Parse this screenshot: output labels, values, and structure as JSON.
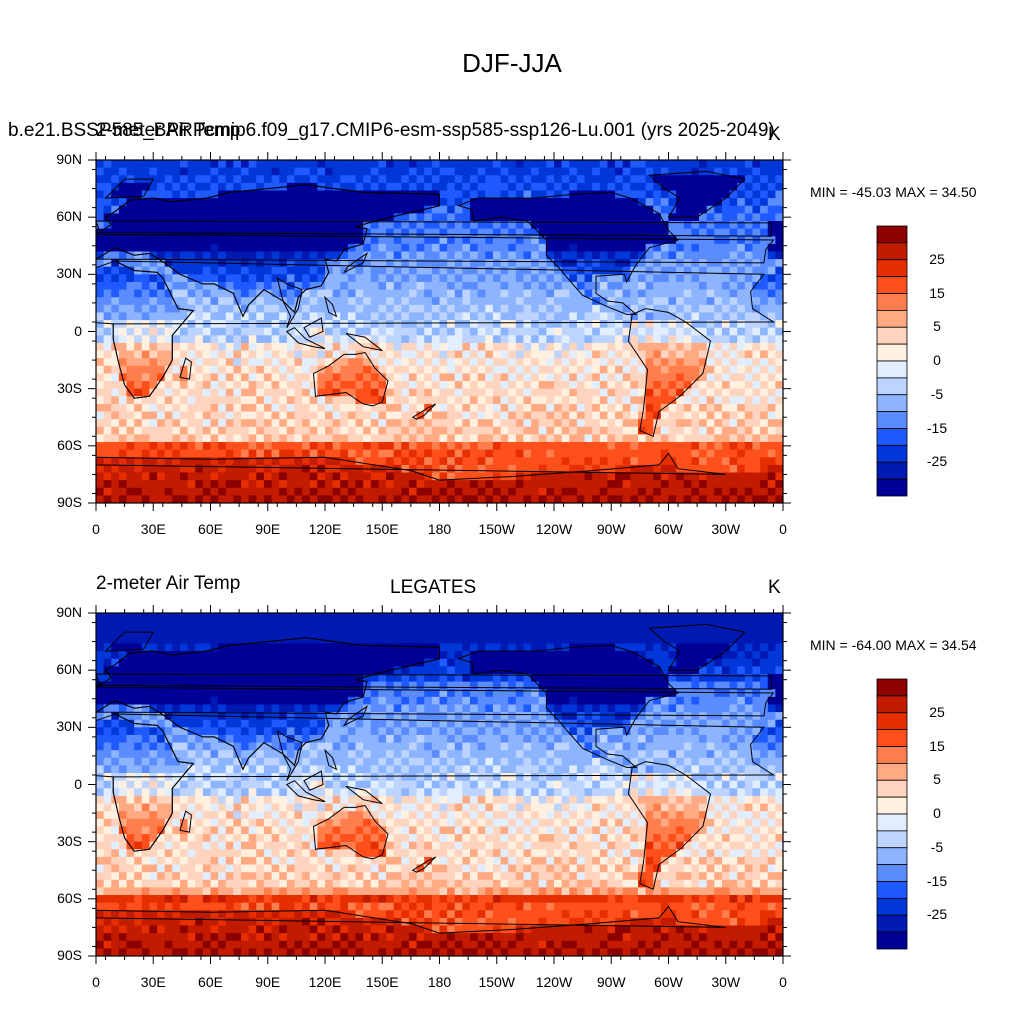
{
  "figure": {
    "title": "DJF-JJA"
  },
  "panels": [
    {
      "left_title": "2-meter Air Temp",
      "center_title": "b.e21.BSSP585_BPRPcmip6.f09_g17.CMIP6-esm-ssp585-ssp126-Lu.001 (yrs 2025-2049)",
      "right_title": "K",
      "stats": "MIN = -45.03 MAX =  34.50"
    },
    {
      "left_title": "2-meter Air Temp",
      "center_title": "LEGATES",
      "right_title": "K",
      "stats": "MIN = -64.00 MAX =  34.54"
    }
  ],
  "axes": {
    "lat_labels": [
      "90N",
      "60N",
      "30N",
      "0",
      "30S",
      "60S",
      "90S"
    ],
    "lon_labels": [
      "0",
      "30E",
      "60E",
      "90E",
      "120E",
      "150E",
      "180",
      "150W",
      "120W",
      "90W",
      "60W",
      "30W",
      "0"
    ]
  },
  "colorbar": {
    "labels": [
      "25",
      "15",
      "5",
      "0",
      "-5",
      "-15",
      "-25"
    ],
    "levels": [
      -30,
      -25,
      -20,
      -15,
      -10,
      -5,
      -2,
      0,
      2,
      5,
      10,
      15,
      20,
      25,
      30
    ],
    "colors": [
      "#000096",
      "#0019b3",
      "#0037d9",
      "#1e5aff",
      "#5a8cff",
      "#8cb4ff",
      "#bcd4ff",
      "#e0eeff",
      "#fff0e0",
      "#ffd4bf",
      "#ffaa82",
      "#ff7e4d",
      "#ff4f1a",
      "#e62e00",
      "#c21b00",
      "#8c0000"
    ]
  },
  "chart_data": {
    "type": "heatmap",
    "title": "DJF-JJA",
    "xlabel": "",
    "ylabel": "",
    "x_range": [
      "0",
      "0"
    ],
    "y_range": [
      "90S",
      "90N"
    ],
    "units": "K",
    "panels": [
      {
        "name": "b.e21.BSSP585_BPRPcmip6.f09_g17.CMIP6-esm-ssp585-ssp126-Lu.001 (yrs 2025-2049)",
        "min": -45.03,
        "max": 34.5
      },
      {
        "name": "LEGATES",
        "min": -64.0,
        "max": 34.54
      }
    ]
  }
}
